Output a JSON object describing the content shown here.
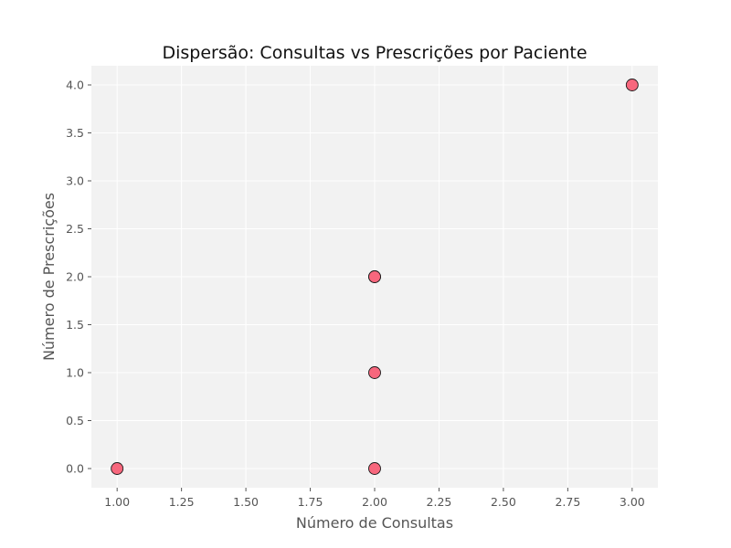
{
  "colors": {
    "plot_background": "#f2f2f2",
    "point_fill": "#f7677d",
    "point_edge": "#1a1a1a"
  },
  "chart_data": {
    "type": "scatter",
    "title": "Dispersão: Consultas vs Prescrições por Paciente",
    "xlabel": "Número de Consultas",
    "ylabel": "Número de Prescrições",
    "xlim": [
      0.9,
      3.1
    ],
    "ylim": [
      -0.2,
      4.2
    ],
    "grid": true,
    "x_ticks": [
      1.0,
      1.25,
      1.5,
      1.75,
      2.0,
      2.25,
      2.5,
      2.75,
      3.0
    ],
    "x_tick_labels": [
      "1.00",
      "1.25",
      "1.50",
      "1.75",
      "2.00",
      "2.25",
      "2.50",
      "2.75",
      "3.00"
    ],
    "y_ticks": [
      0.0,
      0.5,
      1.0,
      1.5,
      2.0,
      2.5,
      3.0,
      3.5,
      4.0
    ],
    "y_tick_labels": [
      "0.0",
      "0.5",
      "1.0",
      "1.5",
      "2.0",
      "2.5",
      "3.0",
      "3.5",
      "4.0"
    ],
    "points": [
      {
        "x": 1,
        "y": 0
      },
      {
        "x": 2,
        "y": 0
      },
      {
        "x": 2,
        "y": 1
      },
      {
        "x": 2,
        "y": 2
      },
      {
        "x": 2,
        "y": 2
      },
      {
        "x": 3,
        "y": 4
      }
    ]
  }
}
